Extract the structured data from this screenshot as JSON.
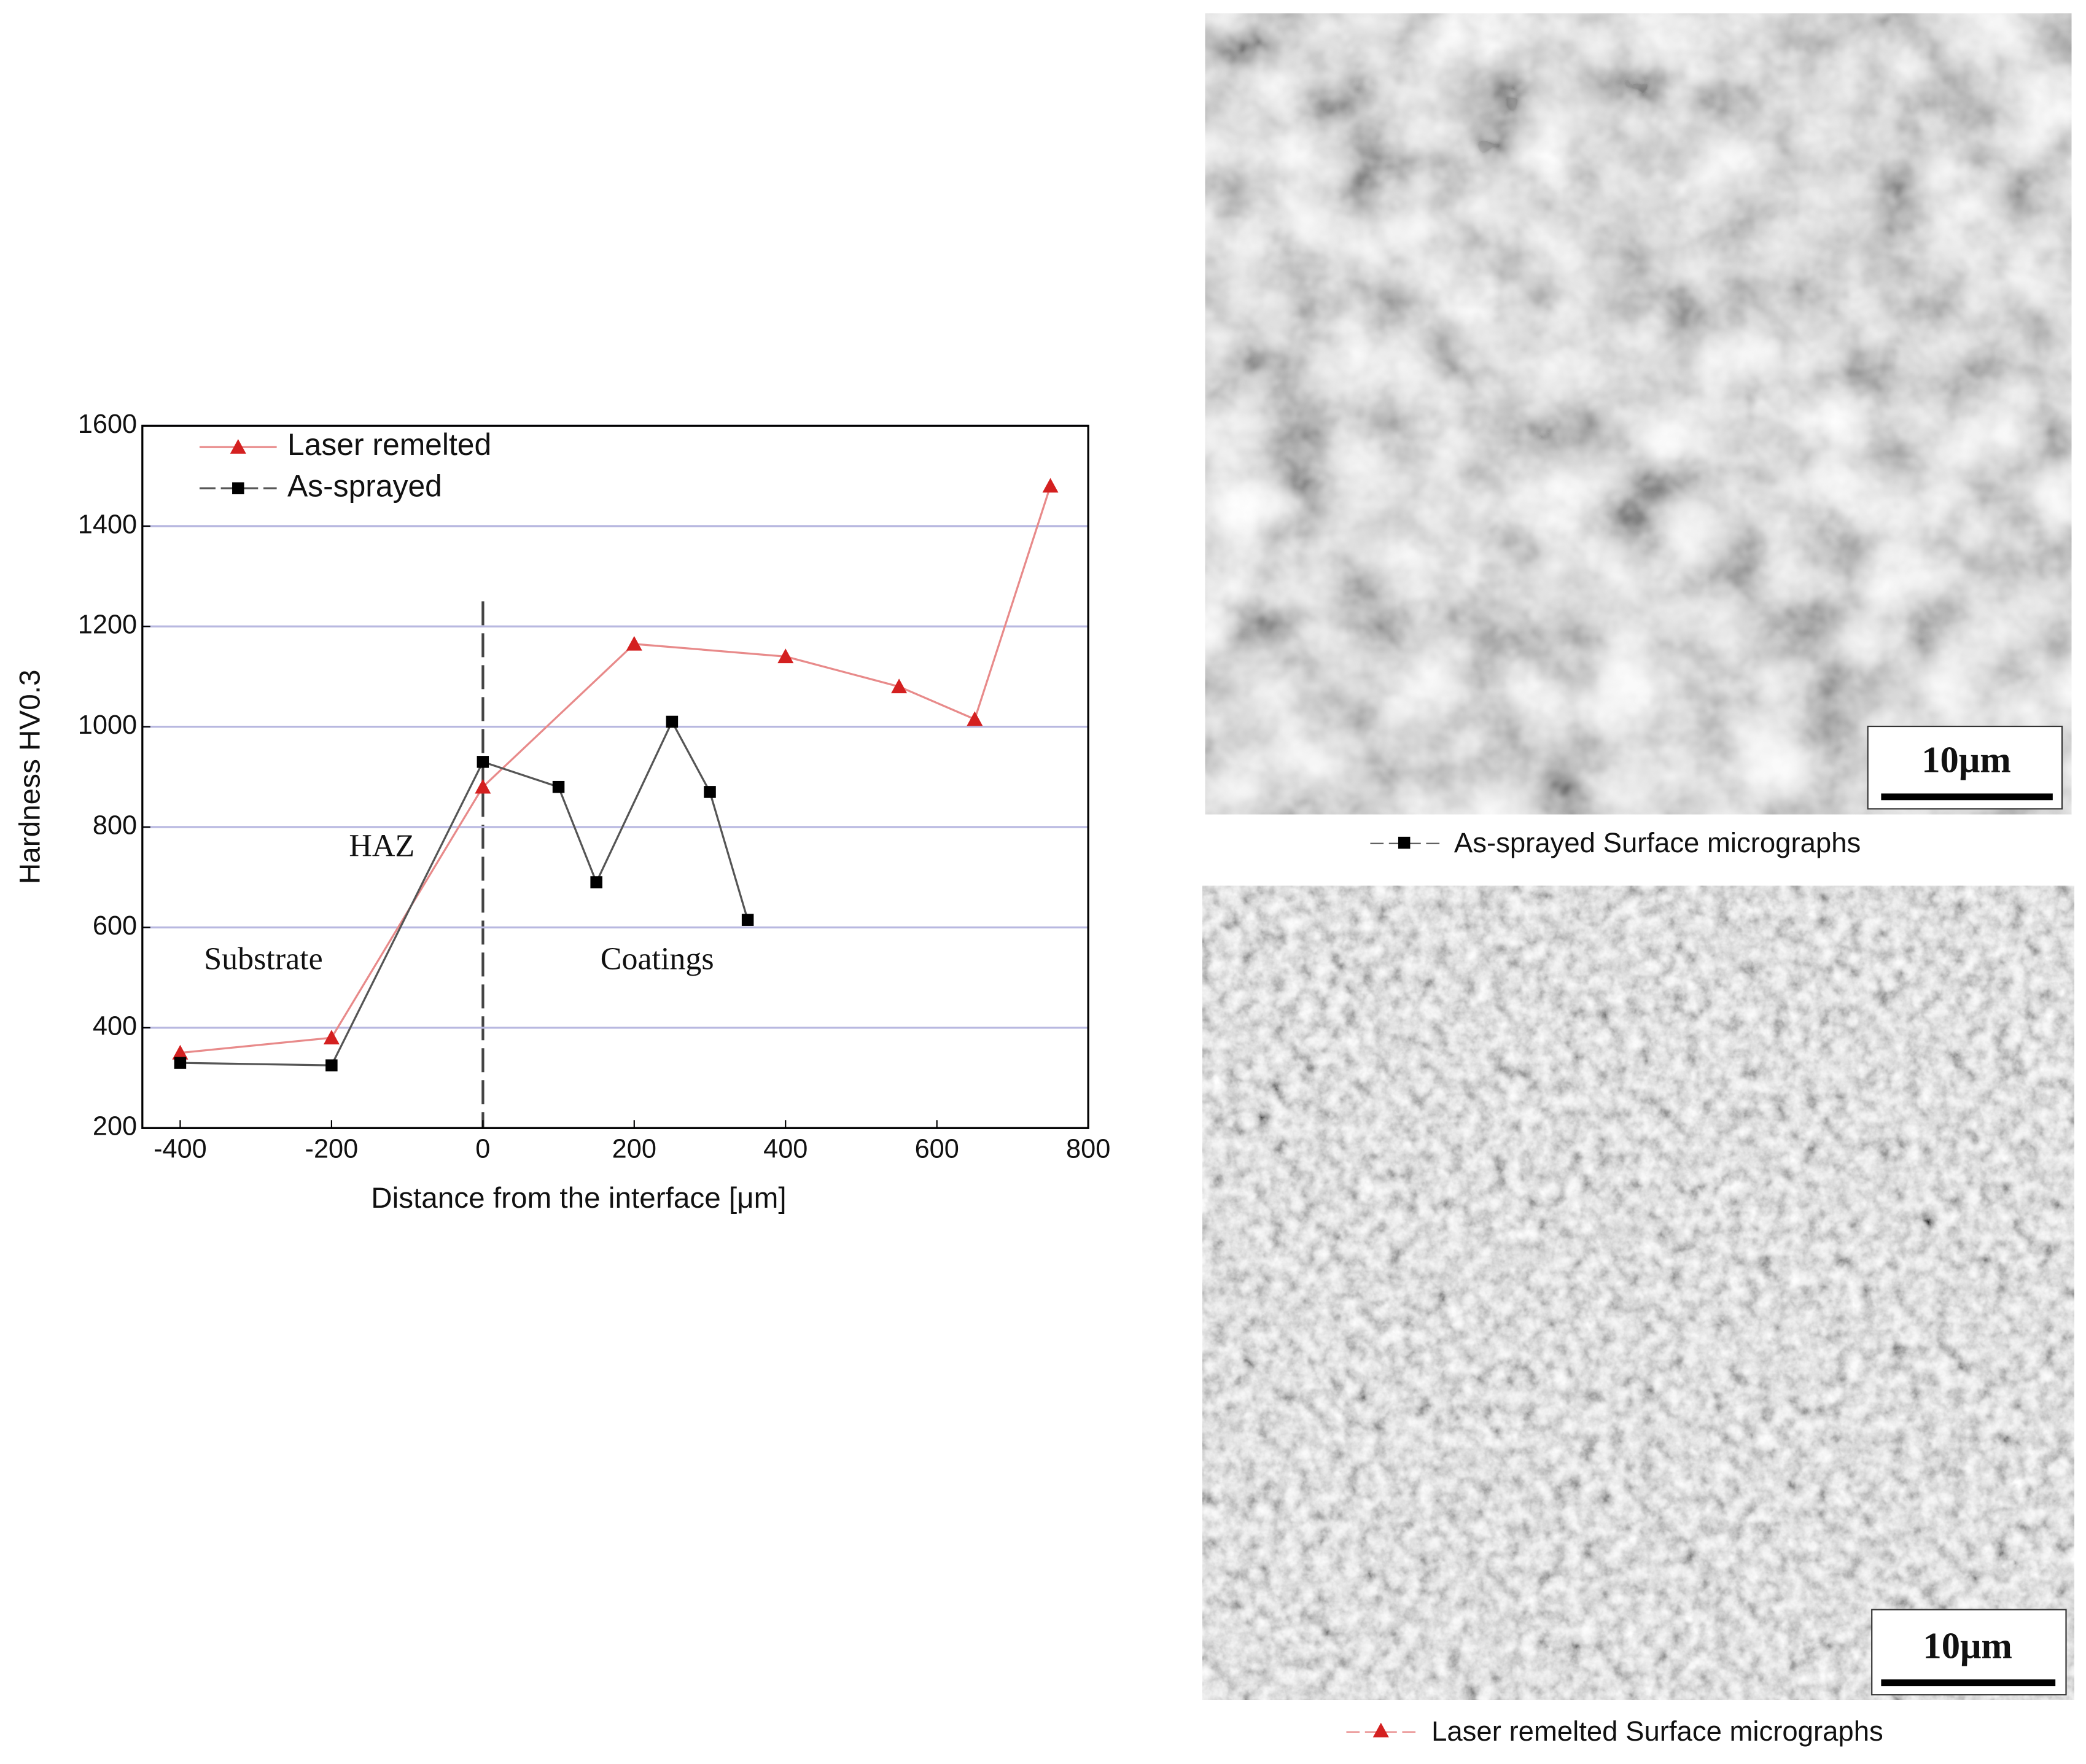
{
  "chart_data": {
    "type": "line",
    "x_label": "Distance from the interface [μm]",
    "y_label": "Hardness HV0.3",
    "xlim": [
      -450,
      800
    ],
    "xticks": [
      -400,
      -200,
      0,
      200,
      400,
      600,
      800
    ],
    "ylim": [
      200,
      1600
    ],
    "yticks": [
      200,
      400,
      600,
      800,
      1000,
      1200,
      1400,
      1600
    ],
    "grid": true,
    "legend": "upper left",
    "annotations": [
      "HAZ",
      "Substrate",
      "Coatings"
    ],
    "series": [
      {
        "name": "Laser remelted",
        "color": "#d42020",
        "line_color": "#e88a8a",
        "marker": "triangle",
        "x": [
          -400,
          -200,
          0,
          200,
          400,
          550,
          650,
          750
        ],
        "values": [
          350,
          380,
          880,
          1165,
          1140,
          1080,
          1015,
          1480
        ]
      },
      {
        "name": "As-sprayed",
        "color": "#000000",
        "line_color": "#555555",
        "marker": "square",
        "x": [
          -400,
          -200,
          0,
          100,
          150,
          250,
          300,
          350
        ],
        "values": [
          330,
          325,
          930,
          880,
          690,
          1010,
          870,
          615
        ]
      }
    ]
  },
  "panels": [
    {
      "scale_bar": "10μm",
      "caption": "As-sprayed Surface micrographs"
    },
    {
      "scale_bar": "10μm",
      "caption": "Laser remelted Surface micrographs"
    }
  ]
}
